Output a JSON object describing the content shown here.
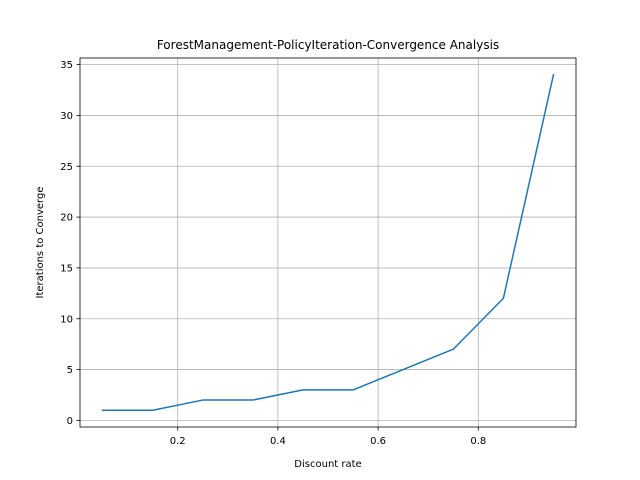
{
  "chart_data": {
    "type": "line",
    "title": "ForestManagement-PolicyIteration-Convergence Analysis",
    "xlabel": "Discount rate",
    "ylabel": "Iterations to Converge",
    "x": [
      0.05,
      0.15,
      0.25,
      0.35,
      0.45,
      0.55,
      0.65,
      0.75,
      0.85,
      0.95
    ],
    "series": [
      {
        "values": [
          1,
          1,
          2,
          2,
          3,
          3,
          5,
          7,
          12,
          34
        ],
        "color": "#1f77b4"
      }
    ],
    "xlim": [
      0.005,
      0.995
    ],
    "ylim": [
      -0.65,
      35.65
    ],
    "xticks": [
      0.2,
      0.4,
      0.6,
      0.8
    ],
    "xtick_labels": [
      "0.2",
      "0.4",
      "0.6",
      "0.8"
    ],
    "yticks": [
      0,
      5,
      10,
      15,
      20,
      25,
      30,
      35
    ],
    "ytick_labels": [
      "0",
      "5",
      "10",
      "15",
      "20",
      "25",
      "30",
      "35"
    ],
    "grid": true,
    "legend": "none"
  }
}
